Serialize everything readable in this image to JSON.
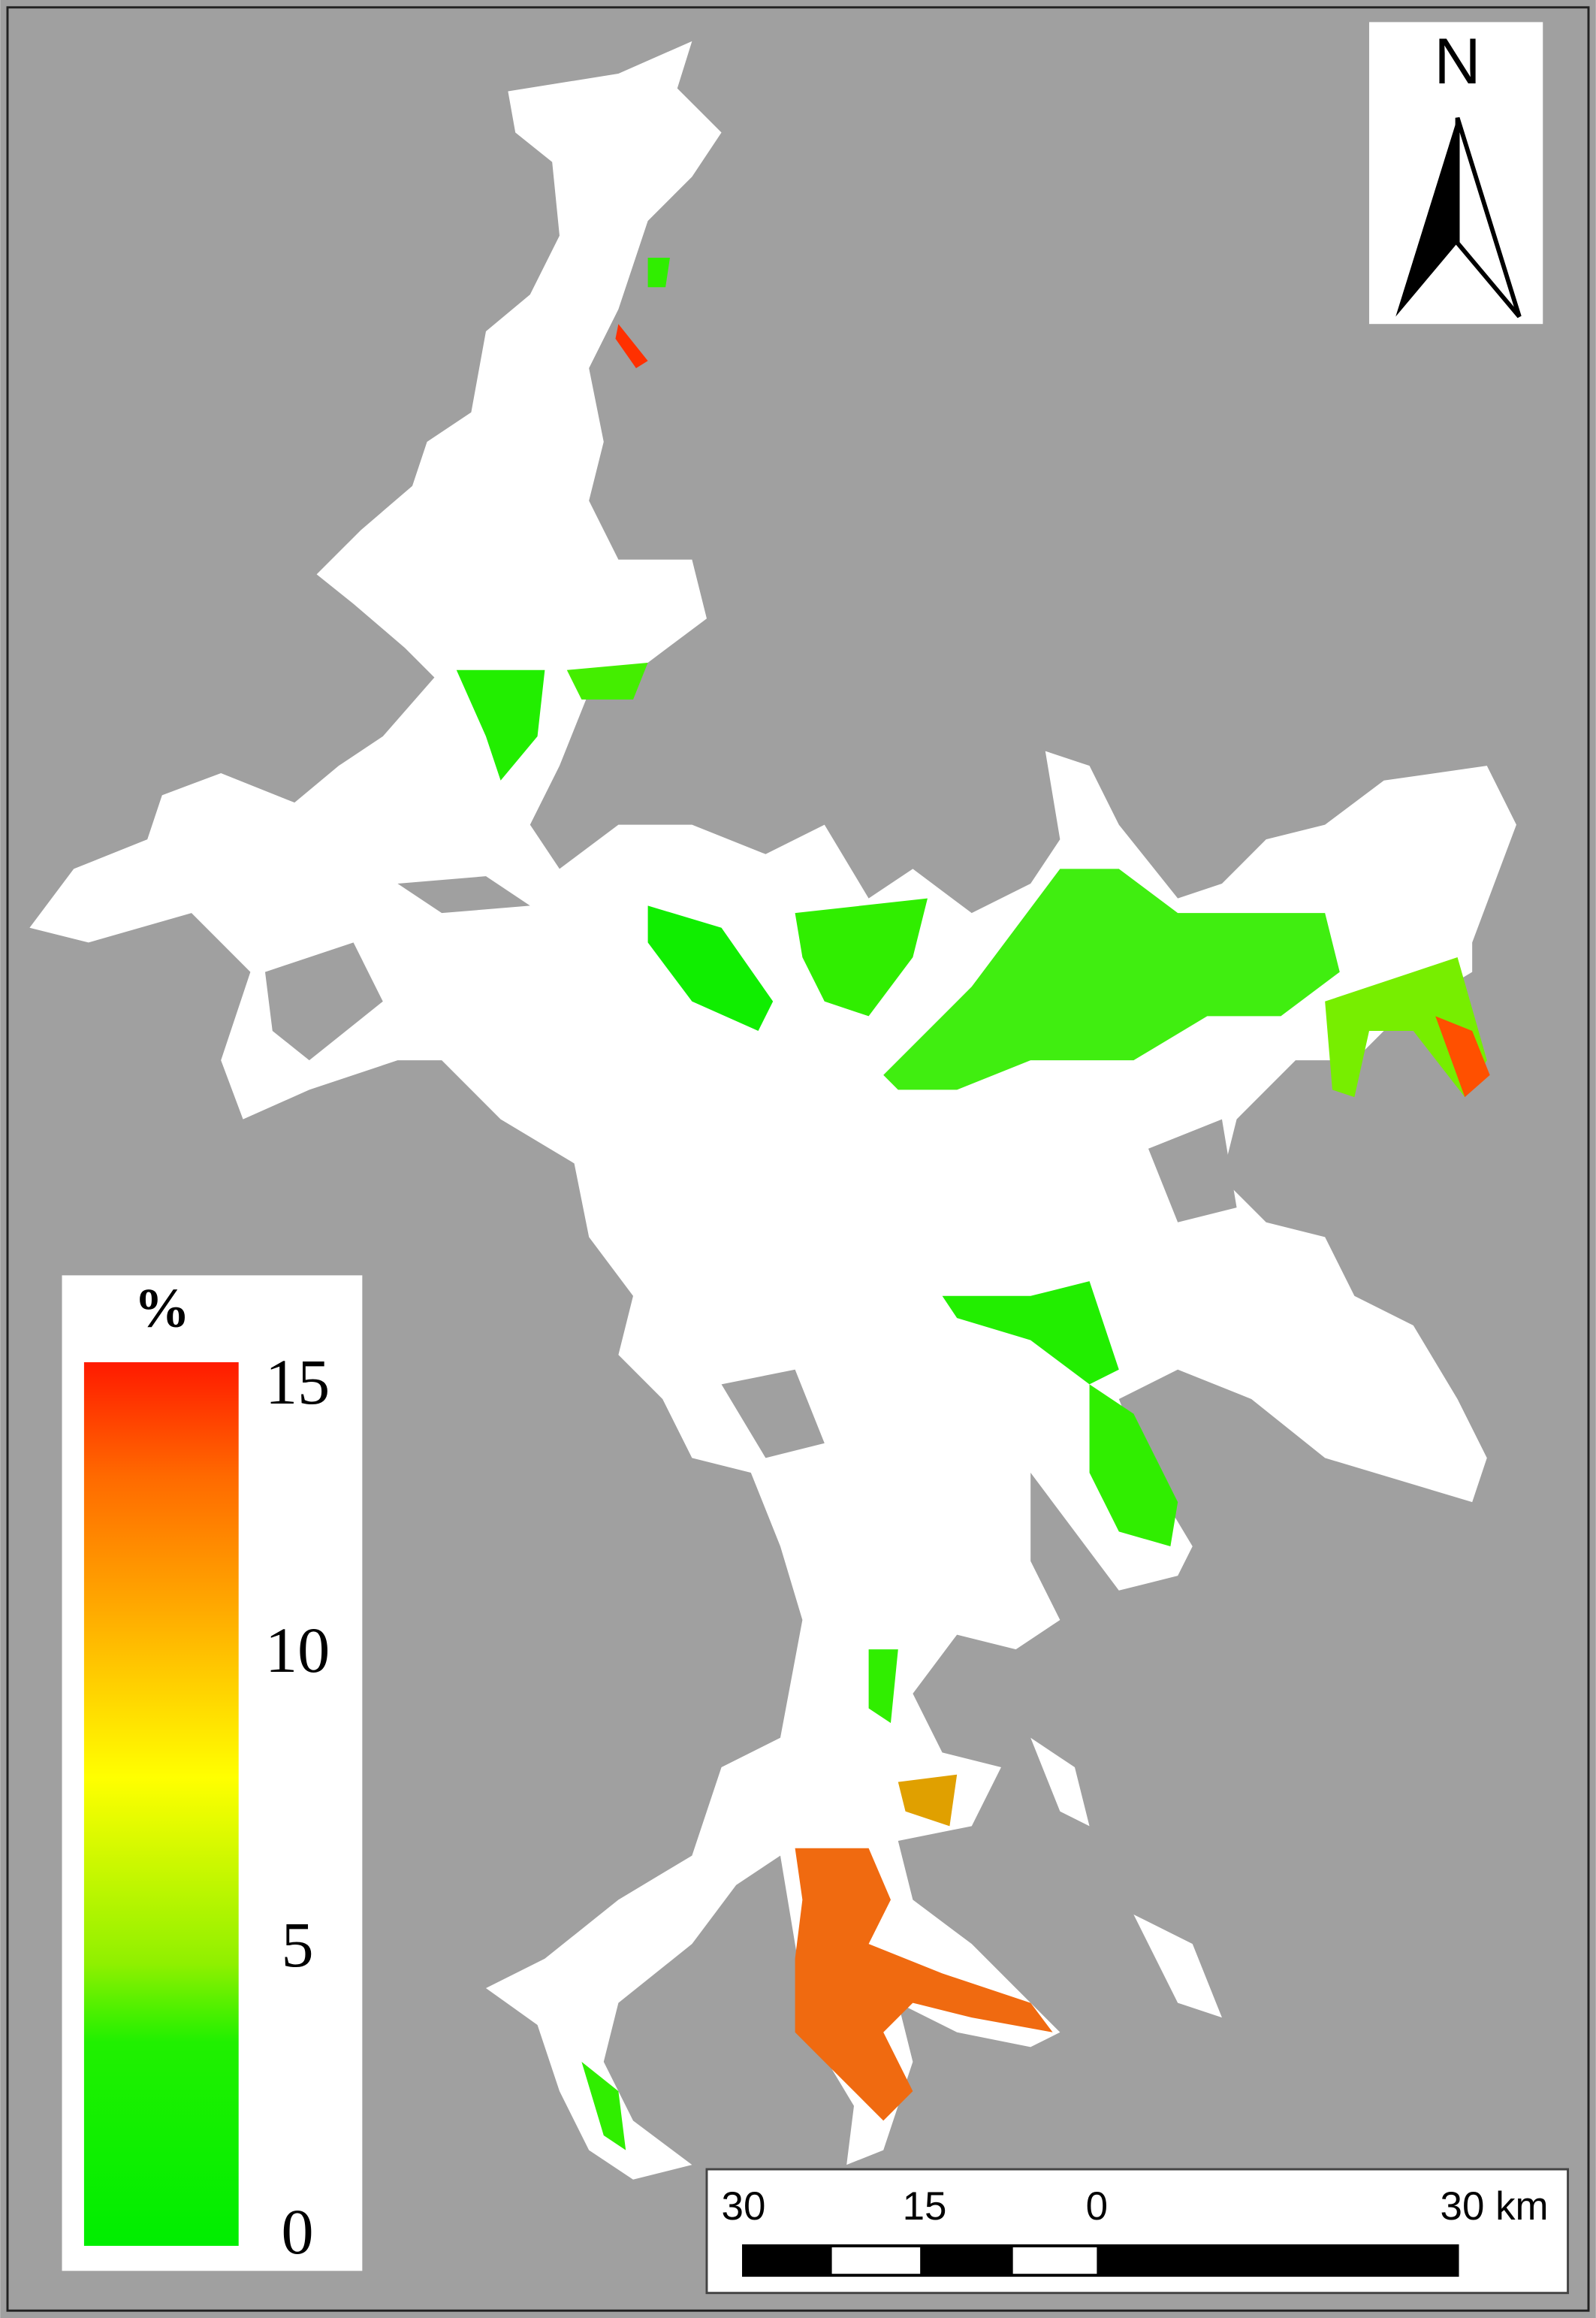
{
  "north_arrow": {
    "label": "N"
  },
  "legend": {
    "title": "%",
    "range": [
      0,
      15
    ],
    "ticks": [
      0,
      5,
      10,
      15
    ]
  },
  "scale_bar": {
    "labels": [
      "30",
      "15",
      "0",
      "30 km"
    ]
  }
}
